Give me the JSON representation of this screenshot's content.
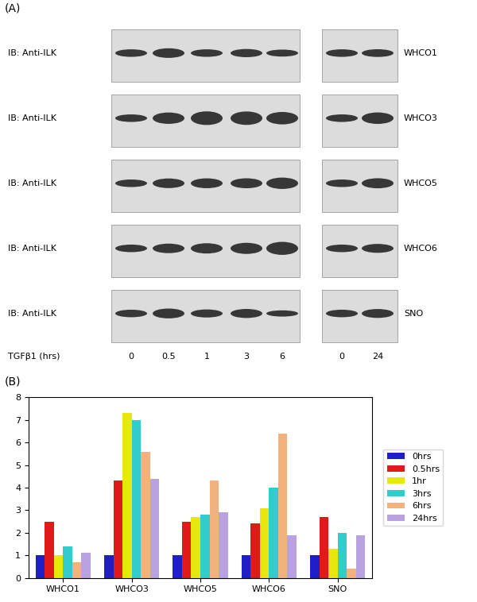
{
  "panel_labels": [
    "(A)",
    "(B)"
  ],
  "blots": {
    "row_label": "IB: Anti-ILK",
    "cell_lines": [
      "WHCO1",
      "WHCO3",
      "WHCO5",
      "WHCO6",
      "SNO"
    ],
    "time_label": "TGFβ1 (hrs)",
    "lanes_left": [
      "0",
      "0.5",
      "1",
      "3",
      "6"
    ],
    "lanes_right": [
      "0",
      "24"
    ]
  },
  "chart_data": {
    "type": "bar",
    "categories": [
      "WHCO1",
      "WHCO3",
      "WHCO5",
      "WHCO6",
      "SNO"
    ],
    "series": [
      {
        "name": "0hrs",
        "color": "#1f1fc8",
        "values": [
          1,
          1,
          1,
          1,
          1
        ]
      },
      {
        "name": "0.5hrs",
        "color": "#e01a1a",
        "values": [
          2.5,
          4.3,
          2.5,
          2.4,
          2.7
        ]
      },
      {
        "name": "1hr",
        "color": "#e8e810",
        "values": [
          1.0,
          7.3,
          2.7,
          3.1,
          1.3
        ]
      },
      {
        "name": "3hrs",
        "color": "#33cccc",
        "values": [
          1.4,
          7.0,
          2.8,
          4.0,
          2.0
        ]
      },
      {
        "name": "6hrs",
        "color": "#f2b27e",
        "values": [
          0.7,
          5.6,
          4.3,
          6.4,
          0.4
        ]
      },
      {
        "name": "24hrs",
        "color": "#b8a2e0",
        "values": [
          1.1,
          4.4,
          2.9,
          1.9,
          1.9
        ]
      }
    ],
    "ylim": [
      0,
      8
    ],
    "yticks": [
      0,
      1,
      2,
      3,
      4,
      5,
      6,
      7,
      8
    ],
    "grid": false,
    "legend": "right"
  }
}
